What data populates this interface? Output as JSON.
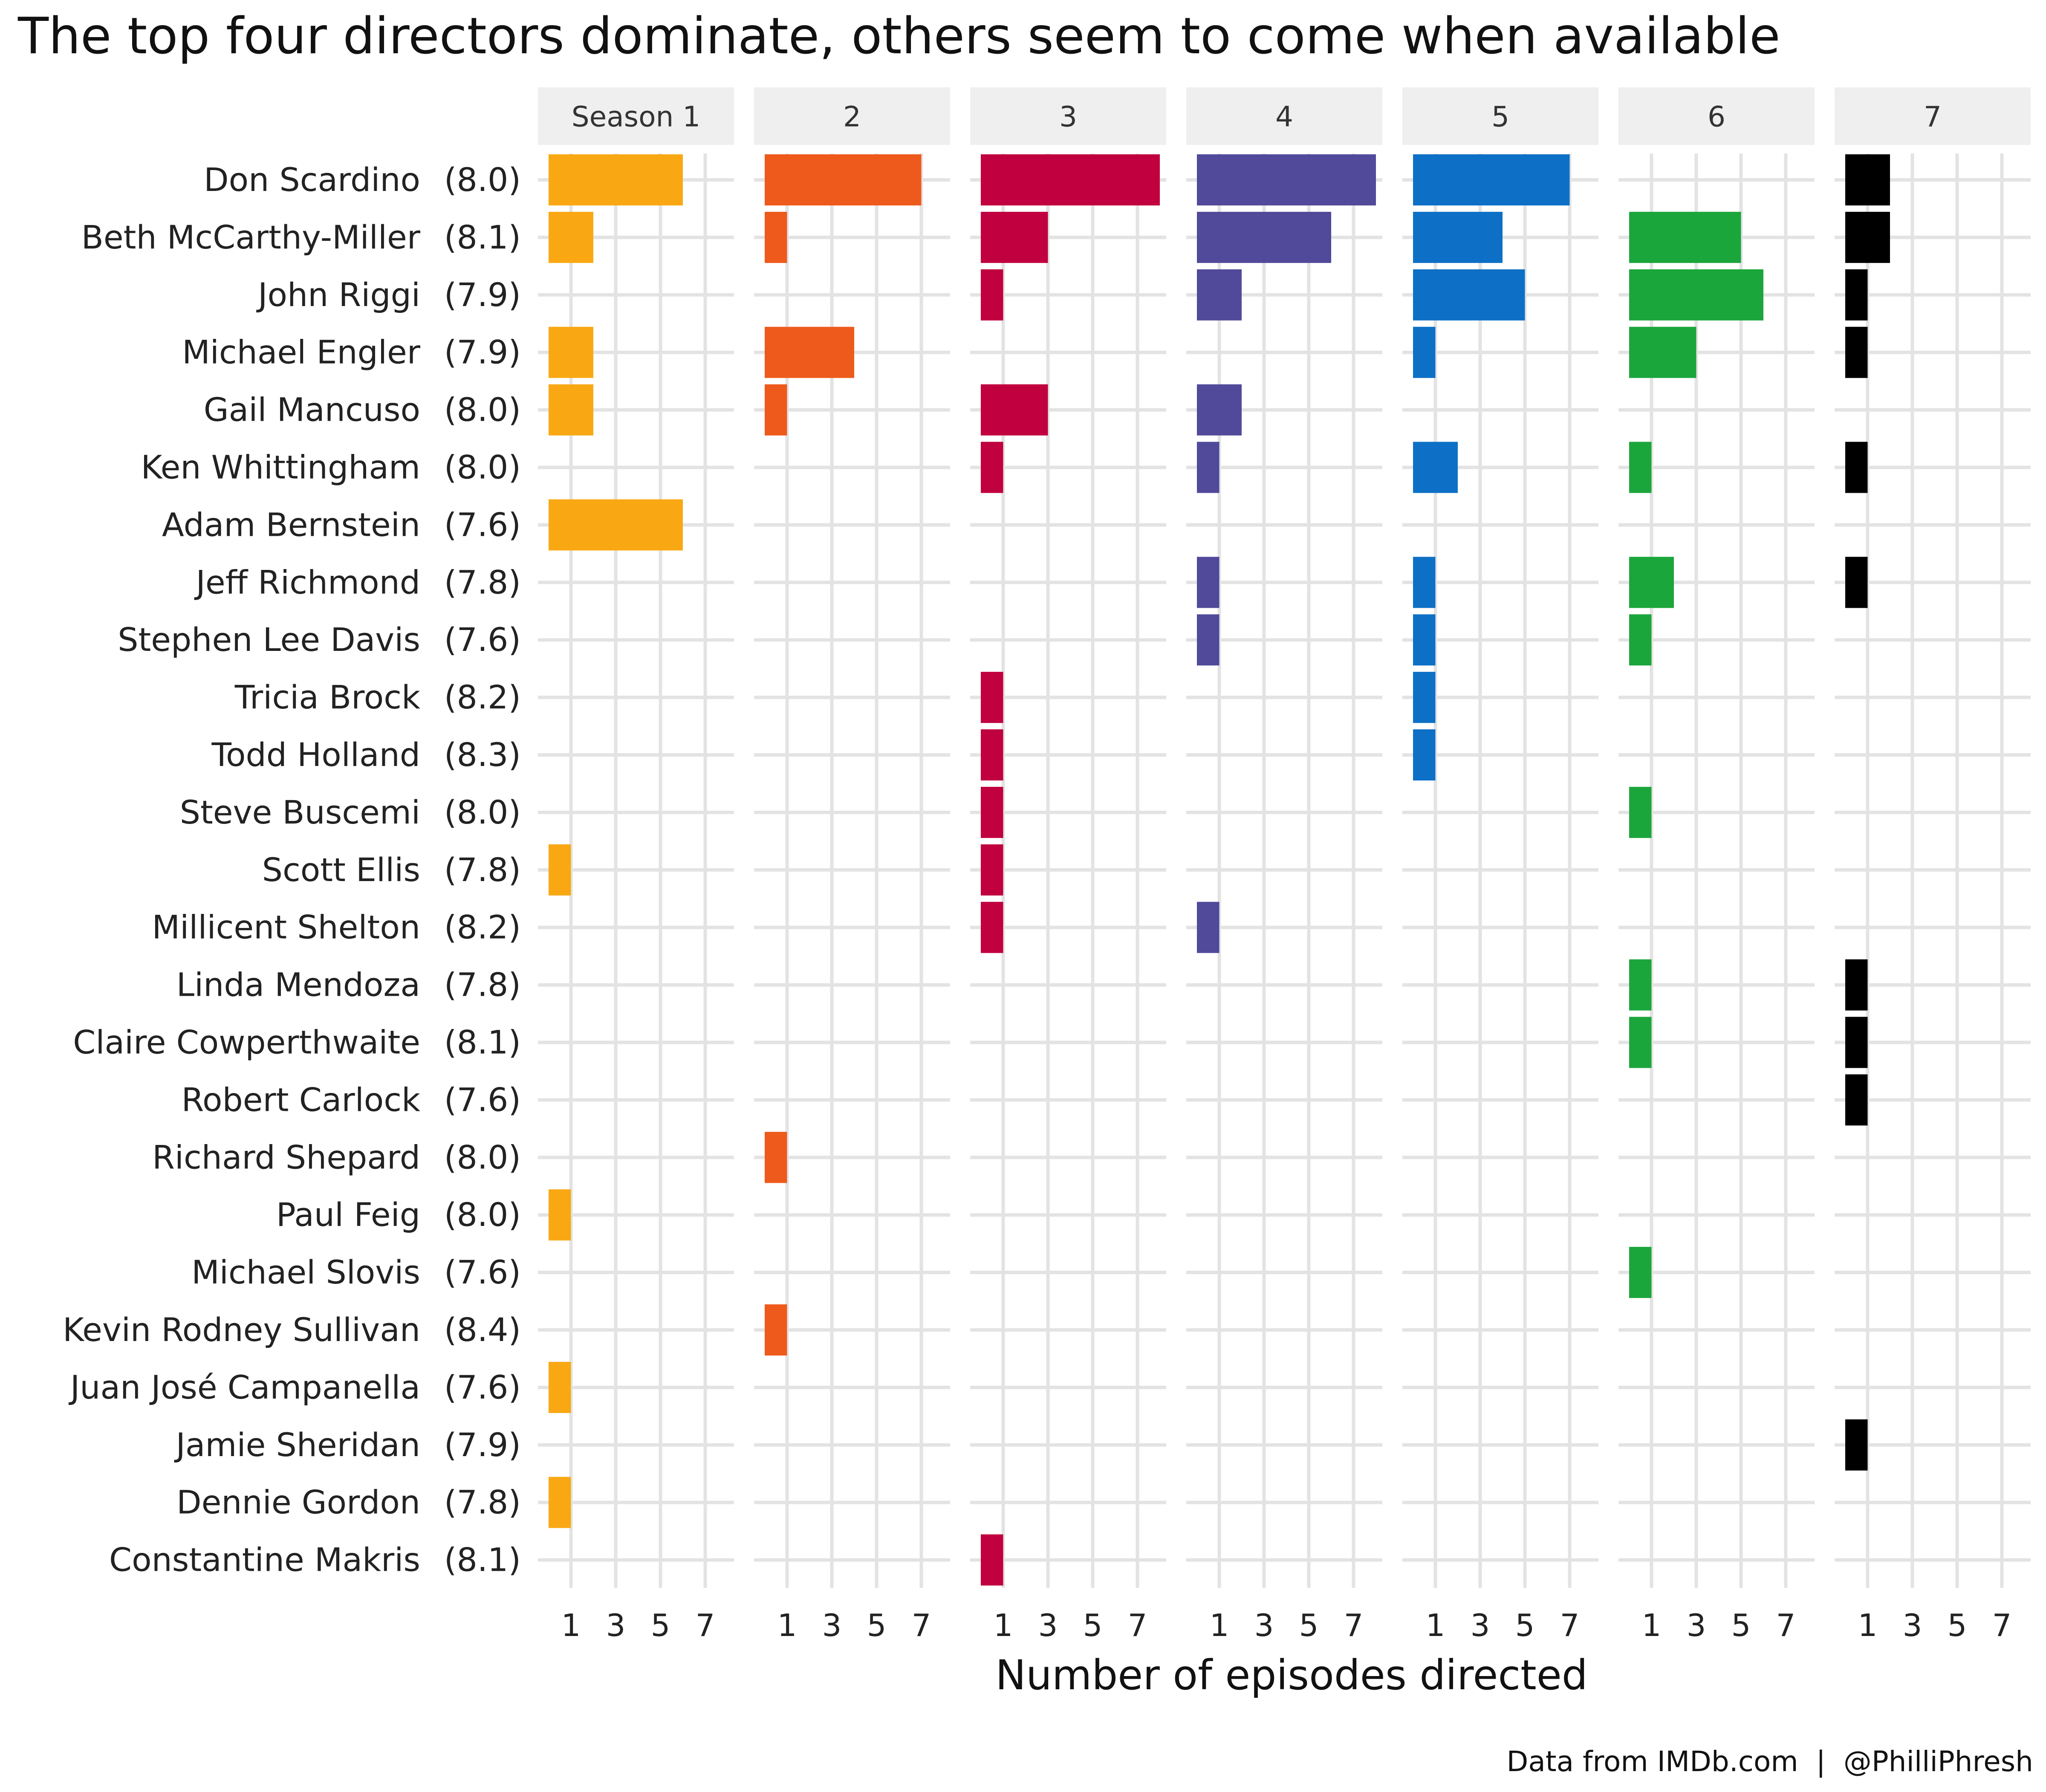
{
  "chart_data": {
    "type": "bar",
    "orientation": "horizontal",
    "layout": "faceted by season",
    "title": "The top four directors dominate, others seem to come when available",
    "xlabel": "Number of episodes directed",
    "ylabel": "",
    "caption": "Data from IMDb.com  |  @PhilliPhresh",
    "x_ticks": [
      1,
      3,
      5,
      7
    ],
    "xlim": [
      0,
      8
    ],
    "grid": true,
    "facets": [
      "Season 1",
      "2",
      "3",
      "4",
      "5",
      "6",
      "7"
    ],
    "colors": [
      "#F9A814",
      "#EE5A1C",
      "#C0003F",
      "#514A9A",
      "#0D70C6",
      "#1BA63B",
      "#000000"
    ],
    "directors": [
      {
        "name": "Don Scardino",
        "rating": "(8.0)",
        "episodes": [
          6,
          7,
          8,
          8,
          7,
          0,
          2
        ]
      },
      {
        "name": "Beth McCarthy-Miller",
        "rating": "(8.1)",
        "episodes": [
          2,
          1,
          3,
          6,
          4,
          5,
          2
        ]
      },
      {
        "name": "John Riggi",
        "rating": "(7.9)",
        "episodes": [
          0,
          0,
          1,
          2,
          5,
          6,
          1
        ]
      },
      {
        "name": "Michael Engler",
        "rating": "(7.9)",
        "episodes": [
          2,
          4,
          0,
          0,
          1,
          3,
          1
        ]
      },
      {
        "name": "Gail Mancuso",
        "rating": "(8.0)",
        "episodes": [
          2,
          1,
          3,
          2,
          0,
          0,
          0
        ]
      },
      {
        "name": "Ken Whittingham",
        "rating": "(8.0)",
        "episodes": [
          0,
          0,
          1,
          1,
          2,
          1,
          1
        ]
      },
      {
        "name": "Adam Bernstein",
        "rating": "(7.6)",
        "episodes": [
          6,
          0,
          0,
          0,
          0,
          0,
          0
        ]
      },
      {
        "name": "Jeff Richmond",
        "rating": "(7.8)",
        "episodes": [
          0,
          0,
          0,
          1,
          1,
          2,
          1
        ]
      },
      {
        "name": "Stephen Lee Davis",
        "rating": "(7.6)",
        "episodes": [
          0,
          0,
          0,
          1,
          1,
          1,
          0
        ]
      },
      {
        "name": "Tricia Brock",
        "rating": "(8.2)",
        "episodes": [
          0,
          0,
          1,
          0,
          1,
          0,
          0
        ]
      },
      {
        "name": "Todd Holland",
        "rating": "(8.3)",
        "episodes": [
          0,
          0,
          1,
          0,
          1,
          0,
          0
        ]
      },
      {
        "name": "Steve Buscemi",
        "rating": "(8.0)",
        "episodes": [
          0,
          0,
          1,
          0,
          0,
          1,
          0
        ]
      },
      {
        "name": "Scott Ellis",
        "rating": "(7.8)",
        "episodes": [
          1,
          0,
          1,
          0,
          0,
          0,
          0
        ]
      },
      {
        "name": "Millicent Shelton",
        "rating": "(8.2)",
        "episodes": [
          0,
          0,
          1,
          1,
          0,
          0,
          0
        ]
      },
      {
        "name": "Linda Mendoza",
        "rating": "(7.8)",
        "episodes": [
          0,
          0,
          0,
          0,
          0,
          1,
          1
        ]
      },
      {
        "name": "Claire Cowperthwaite",
        "rating": "(8.1)",
        "episodes": [
          0,
          0,
          0,
          0,
          0,
          1,
          1
        ]
      },
      {
        "name": "Robert Carlock",
        "rating": "(7.6)",
        "episodes": [
          0,
          0,
          0,
          0,
          0,
          0,
          1
        ]
      },
      {
        "name": "Richard Shepard",
        "rating": "(8.0)",
        "episodes": [
          0,
          1,
          0,
          0,
          0,
          0,
          0
        ]
      },
      {
        "name": "Paul Feig",
        "rating": "(8.0)",
        "episodes": [
          1,
          0,
          0,
          0,
          0,
          0,
          0
        ]
      },
      {
        "name": "Michael Slovis",
        "rating": "(7.6)",
        "episodes": [
          0,
          0,
          0,
          0,
          0,
          1,
          0
        ]
      },
      {
        "name": "Kevin Rodney Sullivan",
        "rating": "(8.4)",
        "episodes": [
          0,
          1,
          0,
          0,
          0,
          0,
          0
        ]
      },
      {
        "name": "Juan José Campanella",
        "rating": "(7.6)",
        "episodes": [
          1,
          0,
          0,
          0,
          0,
          0,
          0
        ]
      },
      {
        "name": "Jamie Sheridan",
        "rating": "(7.9)",
        "episodes": [
          0,
          0,
          0,
          0,
          0,
          0,
          1
        ]
      },
      {
        "name": "Dennie Gordon",
        "rating": "(7.8)",
        "episodes": [
          1,
          0,
          0,
          0,
          0,
          0,
          0
        ]
      },
      {
        "name": "Constantine Makris",
        "rating": "(8.1)",
        "episodes": [
          0,
          0,
          1,
          0,
          0,
          0,
          0
        ]
      }
    ]
  }
}
